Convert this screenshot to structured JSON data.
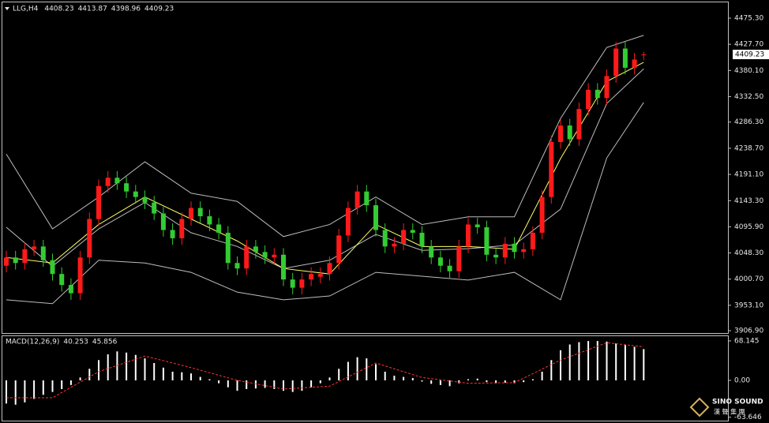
{
  "chart_data": [
    {
      "type": "candlestick",
      "title": "LLG,H4",
      "ylim": [
        3902.6,
        4501.1
      ],
      "yticks": [
        {
          "value": 4475.3,
          "label": "4475.30"
        },
        {
          "value": 4427.7,
          "label": "4427.70"
        },
        {
          "value": 4380.1,
          "label": "4380.10"
        },
        {
          "value": 4332.5,
          "label": "4332.50"
        },
        {
          "value": 4286.3,
          "label": "4286.30"
        },
        {
          "value": 4238.7,
          "label": "4238.70"
        },
        {
          "value": 4191.1,
          "label": "4191.10"
        },
        {
          "value": 4143.3,
          "label": "4143.30"
        },
        {
          "value": 4095.9,
          "label": "4095.90"
        },
        {
          "value": 4048.3,
          "label": "4048.30"
        },
        {
          "value": 4000.7,
          "label": "4000.70"
        },
        {
          "value": 3953.1,
          "label": "3953.10"
        },
        {
          "value": 3906.9,
          "label": "3906.90"
        }
      ],
      "up_color": "#ff1a1a",
      "down_color": "#33cc33",
      "ohlc": {
        "open": [
          4025,
          4040,
          4030,
          4055,
          4060,
          4035,
          4010,
          3990,
          3975,
          4040,
          4110,
          4170,
          4185,
          4175,
          4160,
          4150,
          4140,
          4120,
          4090,
          4075,
          4110,
          4130,
          4115,
          4100,
          4085,
          4030,
          4020,
          4060,
          4050,
          4040,
          4045,
          4000,
          3985,
          4000,
          4005,
          4010,
          4030,
          4080,
          4130,
          4160,
          4135,
          4090,
          4060,
          4065,
          4090,
          4085,
          4060,
          4040,
          4025,
          4015,
          4060,
          4100,
          4095,
          4045,
          4040,
          4065,
          4050,
          4055,
          4085,
          4150,
          4250,
          4280,
          4255,
          4310,
          4345,
          4330,
          4370,
          4420,
          4385,
          4408.23
        ],
        "high": [
          4052,
          4052,
          4067,
          4072,
          4072,
          4047,
          4022,
          4002,
          4052,
          4122,
          4182,
          4197,
          4197,
          4187,
          4172,
          4162,
          4152,
          4132,
          4102,
          4122,
          4142,
          4142,
          4127,
          4112,
          4097,
          4042,
          4072,
          4072,
          4062,
          4057,
          4057,
          4012,
          4012,
          4022,
          4022,
          4042,
          4092,
          4142,
          4172,
          4172,
          4147,
          4102,
          4077,
          4102,
          4102,
          4097,
          4072,
          4052,
          4037,
          4072,
          4112,
          4112,
          4107,
          4057,
          4077,
          4077,
          4067,
          4097,
          4162,
          4262,
          4292,
          4292,
          4322,
          4357,
          4357,
          4382,
          4432,
          4432,
          4412,
          4413.87
        ],
        "low": [
          4013,
          4018,
          4018,
          4043,
          4023,
          3998,
          3978,
          3963,
          3963,
          4028,
          4098,
          4158,
          4163,
          4148,
          4138,
          4128,
          4108,
          4078,
          4063,
          4063,
          4098,
          4103,
          4088,
          4073,
          4018,
          4008,
          4008,
          4038,
          4028,
          4028,
          3988,
          3973,
          3973,
          3988,
          3993,
          3998,
          4018,
          4068,
          4118,
          4123,
          4078,
          4048,
          4048,
          4053,
          4073,
          4048,
          4028,
          4013,
          4003,
          4003,
          4048,
          4083,
          4033,
          4028,
          4028,
          4038,
          4038,
          4043,
          4073,
          4138,
          4238,
          4243,
          4243,
          4298,
          4318,
          4318,
          4358,
          4373,
          4373,
          4398.96
        ],
        "close": [
          4040,
          4030,
          4055,
          4060,
          4035,
          4010,
          3990,
          3975,
          4040,
          4110,
          4170,
          4185,
          4175,
          4160,
          4150,
          4140,
          4120,
          4090,
          4075,
          4110,
          4130,
          4115,
          4100,
          4085,
          4030,
          4020,
          4060,
          4050,
          4040,
          4045,
          4000,
          3985,
          4000,
          4010,
          4010,
          4030,
          4080,
          4130,
          4160,
          4135,
          4090,
          4060,
          4065,
          4090,
          4085,
          4060,
          4040,
          4025,
          4015,
          4060,
          4100,
          4095,
          4045,
          4040,
          4065,
          4050,
          4055,
          4085,
          4150,
          4250,
          4280,
          4255,
          4310,
          4345,
          4330,
          4370,
          4420,
          4385,
          4400,
          4409.23
        ]
      },
      "series": [
        {
          "color": "#bdbdbd",
          "x": [
            0,
            5,
            10,
            15,
            20,
            25,
            30,
            35,
            40,
            45,
            50,
            55,
            60,
            65,
            69
          ],
          "values": [
            4228,
            4092,
            4150,
            4214,
            4157,
            4142,
            4078,
            4100,
            4150,
            4100,
            4114,
            4114,
            4293,
            4422,
            4444
          ]
        },
        {
          "color": "#bdbdbd",
          "x": [
            0,
            5,
            10,
            15,
            20,
            25,
            30,
            35,
            40,
            45,
            50,
            55,
            60,
            65,
            69
          ],
          "values": [
            4095,
            4024,
            4092,
            4140,
            4085,
            4060,
            4020,
            4035,
            4082,
            4053,
            4056,
            4063,
            4128,
            4320,
            4383
          ]
        },
        {
          "color": "#bdbdbd",
          "x": [
            0,
            5,
            10,
            15,
            20,
            25,
            30,
            35,
            40,
            45,
            50,
            55,
            60,
            65,
            69
          ],
          "values": [
            3963,
            3956,
            4035,
            4030,
            4013,
            3977,
            3963,
            3970,
            4013,
            4006,
            3999,
            4013,
            3963,
            4221,
            4322
          ]
        },
        {
          "color": "#ffff66",
          "x": [
            0,
            5,
            10,
            15,
            20,
            25,
            30,
            35,
            40,
            45,
            50,
            55,
            60,
            65,
            69
          ],
          "values": [
            4040,
            4030,
            4100,
            4150,
            4110,
            4070,
            4020,
            4010,
            4100,
            4060,
            4060,
            4055,
            4220,
            4360,
            4395
          ]
        }
      ]
    },
    {
      "type": "macd",
      "title": "MACD(12,26,9)",
      "readings": [
        40.253,
        45.856
      ],
      "ylim": [
        -70.9,
        76.3
      ],
      "yticks": [
        68.145,
        {
          "value": 0,
          "label": "0.00"
        },
        -63.646
      ],
      "color": "#ffffff",
      "values": [
        -40,
        -42,
        -38,
        -32,
        -25,
        -20,
        -15,
        -8,
        5,
        20,
        35,
        45,
        50,
        48,
        44,
        38,
        30,
        22,
        15,
        14,
        12,
        6,
        2,
        -5,
        -12,
        -18,
        -15,
        -14,
        -13,
        -15,
        -18,
        -20,
        -18,
        -12,
        -5,
        5,
        20,
        32,
        40,
        38,
        28,
        15,
        8,
        6,
        4,
        -2,
        -6,
        -8,
        -10,
        -5,
        2,
        3,
        -3,
        -5,
        -4,
        -5,
        -3,
        2,
        15,
        35,
        52,
        62,
        66,
        68,
        68,
        67,
        64,
        62,
        58,
        54
      ],
      "signal": {
        "color": "#ff3333",
        "x": [
          0,
          5,
          10,
          15,
          20,
          25,
          30,
          35,
          40,
          45,
          50,
          55,
          60,
          65,
          69
        ],
        "values": [
          -30,
          -30,
          15,
          42,
          22,
          0,
          -15,
          -10,
          30,
          5,
          -5,
          -4,
          35,
          65,
          58
        ]
      }
    }
  ],
  "watermark": {
    "brand": "SINO SOUND",
    "subtitle": "漢 聲 集 團"
  }
}
